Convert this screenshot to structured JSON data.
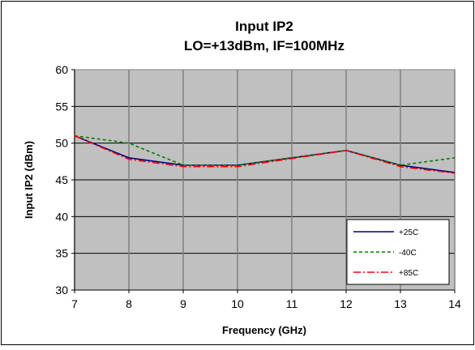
{
  "chart_data": {
    "type": "line",
    "title": "Input IP2",
    "subtitle": "LO=+13dBm, IF=100MHz",
    "xlabel": "Frequency (GHz)",
    "ylabel": "Input IP2 (dBm)",
    "xlim": [
      7,
      14
    ],
    "ylim": [
      30,
      60
    ],
    "x_ticks": [
      "7",
      "8",
      "9",
      "10",
      "11",
      "12",
      "13",
      "14"
    ],
    "y_ticks": [
      "30",
      "35",
      "40",
      "45",
      "50",
      "55",
      "60"
    ],
    "grid": true,
    "plot_background": "#c0c0c0",
    "legend_position": "bottom-right",
    "series": [
      {
        "name": "+25C",
        "color": "#000080",
        "style": "solid",
        "x": [
          7,
          8,
          9,
          10,
          11,
          12,
          13,
          14
        ],
        "y": [
          51,
          48,
          47,
          47,
          48,
          49,
          47,
          46
        ]
      },
      {
        "name": "-40C",
        "color": "#008000",
        "style": "dashed",
        "x": [
          7,
          8,
          9,
          10,
          11,
          12,
          13,
          14
        ],
        "y": [
          51,
          50,
          47,
          47,
          48,
          49,
          47,
          48
        ]
      },
      {
        "name": "+85C",
        "color": "#ff0000",
        "style": "dashdot",
        "x": [
          7,
          8,
          9,
          10,
          11,
          12,
          13,
          14
        ],
        "y": [
          51,
          47.8,
          46.8,
          46.8,
          47.9,
          49,
          46.8,
          45.9
        ]
      }
    ]
  }
}
